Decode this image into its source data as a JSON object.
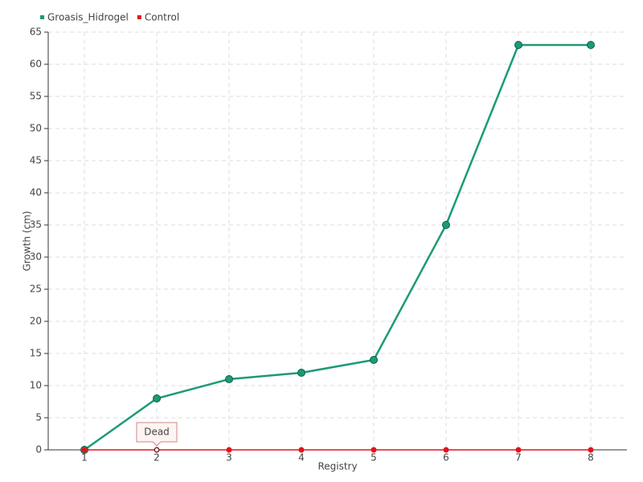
{
  "chart_data": {
    "type": "line",
    "x_label": "Registry",
    "y_label": "Growth (cm)",
    "categories": [
      "1",
      "2",
      "3",
      "4",
      "5",
      "6",
      "7",
      "8"
    ],
    "series": [
      {
        "name": "Groasis_Hidrogel",
        "color": "#1b9a78",
        "values": [
          0,
          8,
          11,
          12,
          14,
          35,
          63,
          63
        ]
      },
      {
        "name": "Control",
        "color": "#e3131e",
        "values": [
          0,
          0,
          0,
          0,
          0,
          0,
          0,
          0
        ]
      }
    ],
    "ylim": [
      0,
      65
    ],
    "yticks": [
      0,
      5,
      10,
      15,
      20,
      25,
      30,
      35,
      40,
      45,
      50,
      55,
      60,
      65
    ],
    "grid": true,
    "legend": "top-left",
    "annotations": [
      {
        "text": "Dead",
        "x": "2",
        "y": 0
      }
    ]
  }
}
